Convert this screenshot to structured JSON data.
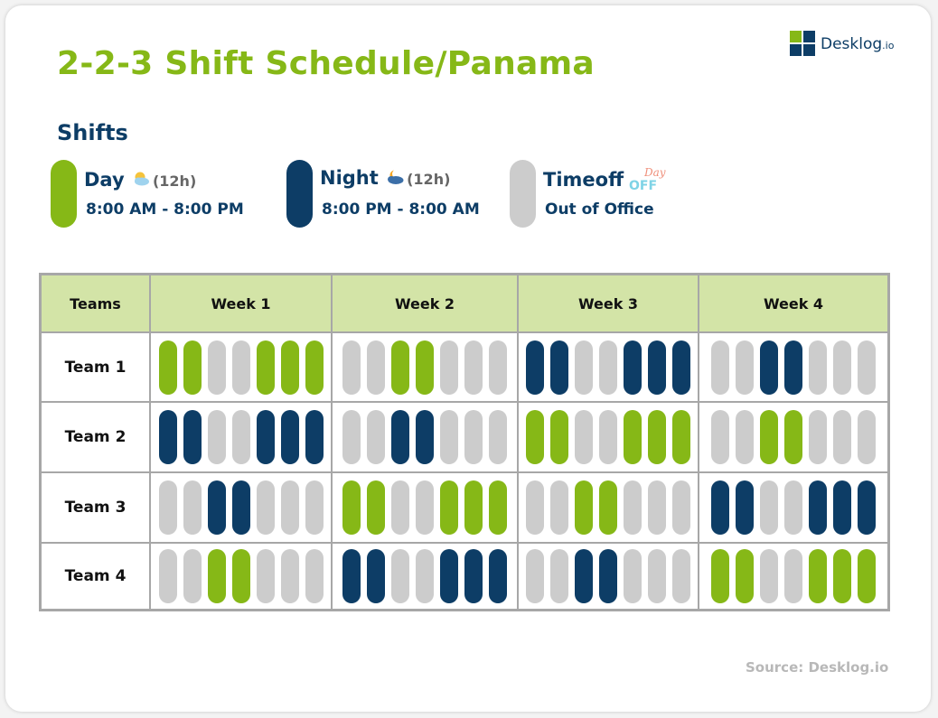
{
  "title": "2-2-3 Shift Schedule/Panama",
  "logo": {
    "name": "Desklog",
    "suffix": ".io"
  },
  "shifts_heading": "Shifts",
  "legend": [
    {
      "name": "Day",
      "icon": "sun-cloud-icon",
      "duration": "(12h)",
      "sub": "8:00 AM - 8:00 PM",
      "color": "#86b817"
    },
    {
      "name": "Night",
      "icon": "moon-cloud-icon",
      "duration": "(12h)",
      "sub": "8:00 PM - 8:00 AM",
      "color": "#0d3d66"
    },
    {
      "name": "Timeoff",
      "icon": "day-off-icon",
      "icon_text": [
        "Day",
        "OFF"
      ],
      "sub": "Out of Office",
      "color": "#cccccc"
    }
  ],
  "colors": {
    "D": "#86b817",
    "N": "#0d3d66",
    "O": "#cccccc"
  },
  "table": {
    "headers": [
      "Teams",
      "Week 1",
      "Week 2",
      "Week 3",
      "Week 4"
    ],
    "rows": [
      {
        "team": "Team 1",
        "weeks": [
          "DDOODDD",
          "OODDOOO",
          "NNOONNN",
          "OONNOOO"
        ]
      },
      {
        "team": "Team 2",
        "weeks": [
          "NNOONNN",
          "OONNOOO",
          "DDOODDD",
          "OODDOOO"
        ]
      },
      {
        "team": "Team 3",
        "weeks": [
          "OONNOOO",
          "DDOODDD",
          "OODDOOO",
          "NNOONNN"
        ]
      },
      {
        "team": "Team 4",
        "weeks": [
          "OODDOOO",
          "NNOONNN",
          "OONNOOO",
          "DDOODDD"
        ]
      }
    ]
  },
  "source": "Source: Desklog.io"
}
